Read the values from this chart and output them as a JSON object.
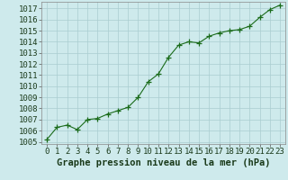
{
  "x": [
    0,
    1,
    2,
    3,
    4,
    5,
    6,
    7,
    8,
    9,
    10,
    11,
    12,
    13,
    14,
    15,
    16,
    17,
    18,
    19,
    20,
    21,
    22,
    23
  ],
  "y": [
    1005.2,
    1006.3,
    1006.5,
    1006.1,
    1007.0,
    1007.1,
    1007.5,
    1007.8,
    1008.1,
    1009.0,
    1010.4,
    1011.1,
    1012.6,
    1013.7,
    1014.0,
    1013.9,
    1014.5,
    1014.8,
    1015.0,
    1015.1,
    1015.4,
    1016.2,
    1016.9,
    1017.3
  ],
  "line_color": "#1a6b1a",
  "marker": "+",
  "bg_color": "#ceeaec",
  "grid_color": "#aacdd0",
  "xlabel": "Graphe pression niveau de la mer (hPa)",
  "ylim": [
    1004.8,
    1017.6
  ],
  "yticks": [
    1005,
    1006,
    1007,
    1008,
    1009,
    1010,
    1011,
    1012,
    1013,
    1014,
    1015,
    1016,
    1017
  ],
  "xticks": [
    0,
    1,
    2,
    3,
    4,
    5,
    6,
    7,
    8,
    9,
    10,
    11,
    12,
    13,
    14,
    15,
    16,
    17,
    18,
    19,
    20,
    21,
    22,
    23
  ],
  "xlabel_fontsize": 7.5,
  "tick_fontsize": 6.5,
  "line_width": 0.8,
  "marker_size": 4
}
